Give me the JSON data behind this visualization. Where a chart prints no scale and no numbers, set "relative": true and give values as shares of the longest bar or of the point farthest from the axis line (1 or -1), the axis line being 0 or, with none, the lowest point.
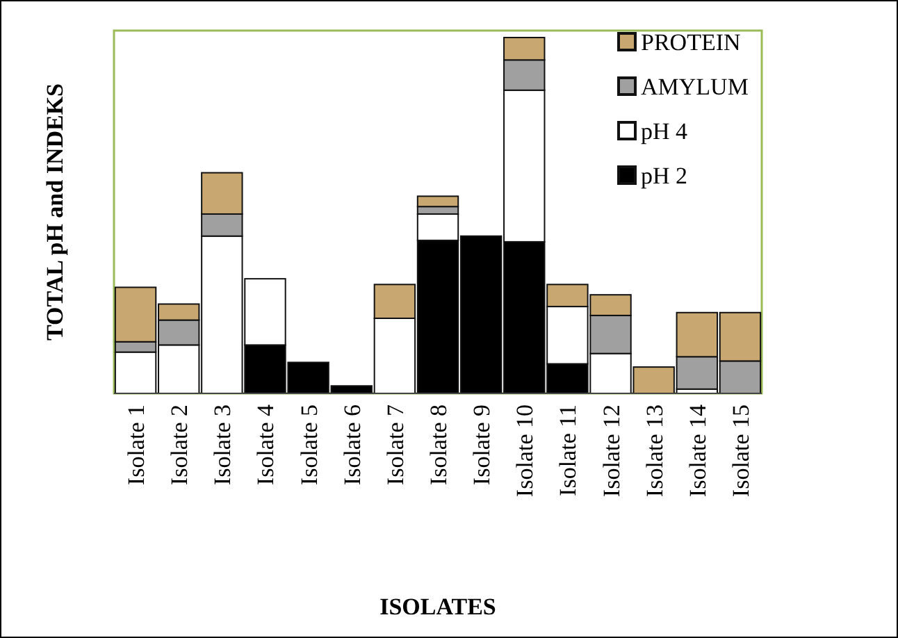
{
  "chart_data": {
    "type": "bar",
    "stacked": true,
    "relative": true,
    "xlabel": "ISOLATES",
    "ylabel": "TOTAL pH and INDEKS",
    "legend": "top right",
    "categories": [
      "Isolate 1",
      "Isolate 2",
      "Isolate 3",
      "Isolate 4",
      "Isolate 5",
      "Isolate 6",
      "Isolate 7",
      "Isolate 8",
      "Isolate 9",
      "Isolate 10",
      "Isolate 11",
      "Isolate 12",
      "Isolate 13",
      "Isolate 14",
      "Isolate 15"
    ],
    "series": [
      {
        "name": "pH 2",
        "color": "#000000",
        "values": [
          0,
          0,
          0,
          0.136,
          0.087,
          0.021,
          0,
          0.43,
          0.442,
          0.426,
          0.083,
          0,
          0,
          0,
          0
        ]
      },
      {
        "name": "pH 4",
        "color": "#ffffff",
        "values": [
          0.116,
          0.136,
          0.442,
          0.186,
          0,
          0,
          0.211,
          0.074,
          0,
          0.426,
          0.161,
          0.112,
          0,
          0.012,
          0
        ]
      },
      {
        "name": "AMYLUM",
        "color": "#a0a0a0",
        "values": [
          0.029,
          0.07,
          0.062,
          0,
          0,
          0,
          0,
          0.021,
          0,
          0.085,
          0,
          0.107,
          0,
          0.091,
          0.091
        ]
      },
      {
        "name": "PROTEIN",
        "color": "#c8a870",
        "values": [
          0.153,
          0.045,
          0.116,
          0,
          0,
          0,
          0.095,
          0.029,
          0,
          0.063,
          0.062,
          0.058,
          0.074,
          0.124,
          0.136
        ]
      }
    ]
  }
}
